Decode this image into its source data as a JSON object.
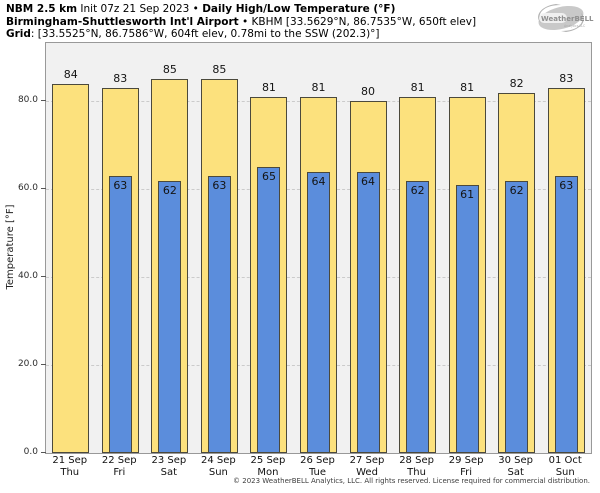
{
  "header": {
    "model": "NBM 2.5 km",
    "init": "Init 07z 21 Sep 2023",
    "bullet": "•",
    "product": "Daily High/Low Temperature (°F)",
    "station": "Birmingham-Shuttlesworth Int'l Airport",
    "station_info": "• KBHM [33.5629°N, 86.7535°W, 650ft elev]",
    "grid_label": "Grid",
    "grid_info": ": [33.5525°N, 86.7586°W, 604ft elev, 0.78mi to the SSW (202.3)°]"
  },
  "logo": {
    "name": "WeatherBELL",
    "sub": "Analytics LLC"
  },
  "chart_data": {
    "type": "bar",
    "title": "NBM 2.5 km Daily High/Low Temperature (°F) — KBHM Birmingham",
    "categories": [
      {
        "date": "21 Sep",
        "day": "Thu"
      },
      {
        "date": "22 Sep",
        "day": "Fri"
      },
      {
        "date": "23 Sep",
        "day": "Sat"
      },
      {
        "date": "24 Sep",
        "day": "Sun"
      },
      {
        "date": "25 Sep",
        "day": "Mon"
      },
      {
        "date": "26 Sep",
        "day": "Tue"
      },
      {
        "date": "27 Sep",
        "day": "Wed"
      },
      {
        "date": "28 Sep",
        "day": "Thu"
      },
      {
        "date": "29 Sep",
        "day": "Fri"
      },
      {
        "date": "30 Sep",
        "day": "Sat"
      },
      {
        "date": "01 Oct",
        "day": "Sun"
      }
    ],
    "series": [
      {
        "name": "Daily High (°F)",
        "color": "#fce17d",
        "values": [
          84,
          83,
          85,
          85,
          81,
          81,
          80,
          81,
          81,
          82,
          83
        ]
      },
      {
        "name": "Daily Low (°F)",
        "color": "#5b8ddc",
        "values": [
          null,
          63,
          62,
          63,
          65,
          64,
          64,
          62,
          61,
          62,
          63
        ]
      }
    ],
    "ylabel": "Temperature [°F]",
    "yticks": [
      "0.0",
      "20.0",
      "40.0",
      "60.0",
      "80.0"
    ],
    "ytick_values": [
      0,
      20,
      40,
      60,
      80
    ],
    "ylim": [
      0,
      93.3
    ],
    "grid": "horizontal dashed",
    "legend_position": "none",
    "bar_edge_color": "#4b493c",
    "plot_bg": "#f1f1f1"
  },
  "footer": "© 2023 WeatherBELL Analytics, LLC. All rights reserved. License required for commercial distribution."
}
